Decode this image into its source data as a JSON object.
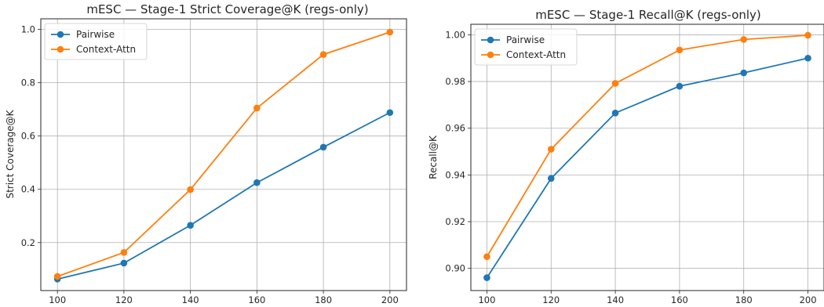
{
  "chart_data": [
    {
      "type": "line",
      "title": "mESC — Stage-1 Strict Coverage@K (regs-only)",
      "xlabel": "",
      "ylabel": "Strict Coverage@K",
      "x": [
        100,
        120,
        140,
        160,
        180,
        200
      ],
      "xticks": [
        "100",
        "120",
        "140",
        "160",
        "180",
        "200"
      ],
      "yticks": [
        0.2,
        0.4,
        0.6,
        0.8,
        1.0
      ],
      "ytick_labels": [
        "0.2",
        "0.4",
        "0.6",
        "0.8",
        "1.0"
      ],
      "xlim": [
        95,
        205
      ],
      "ylim": [
        0.02,
        1.04
      ],
      "grid": true,
      "legend": "top-left",
      "series": [
        {
          "name": "Pairwise",
          "color": "#1f77b4",
          "values": [
            0.063,
            0.123,
            0.265,
            0.425,
            0.558,
            0.688
          ]
        },
        {
          "name": "Context-Attn",
          "color": "#ff7f0e",
          "values": [
            0.073,
            0.163,
            0.399,
            0.705,
            0.906,
            0.99
          ]
        }
      ]
    },
    {
      "type": "line",
      "title": "mESC — Stage-1 Recall@K (regs-only)",
      "xlabel": "",
      "ylabel": "Recall@K",
      "x": [
        100,
        120,
        140,
        160,
        180,
        200
      ],
      "xticks": [
        "100",
        "120",
        "140",
        "160",
        "180",
        "200"
      ],
      "yticks": [
        0.9,
        0.92,
        0.94,
        0.96,
        0.98,
        1.0
      ],
      "ytick_labels": [
        "0.90",
        "0.92",
        "0.94",
        "0.96",
        "0.98",
        "1.00"
      ],
      "xlim": [
        95,
        205
      ],
      "ylim": [
        0.8905,
        1.0045
      ],
      "grid": true,
      "legend": "top-left",
      "series": [
        {
          "name": "Pairwise",
          "color": "#1f77b4",
          "values": [
            0.896,
            0.9385,
            0.9665,
            0.978,
            0.9837,
            0.99
          ]
        },
        {
          "name": "Context-Attn",
          "color": "#ff7f0e",
          "values": [
            0.905,
            0.951,
            0.9792,
            0.9935,
            0.998,
            0.9998
          ]
        }
      ]
    }
  ]
}
